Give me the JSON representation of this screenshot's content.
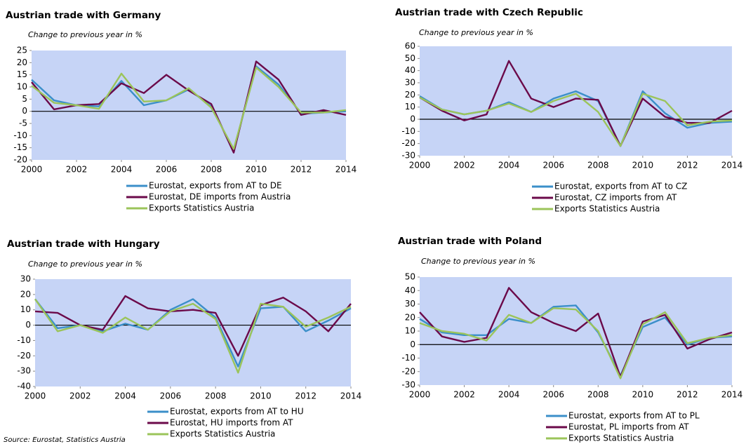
{
  "chart_data": [
    {
      "type": "line",
      "title": "Austrian trade with Germany",
      "subtitle": "Change to previous year in %",
      "x": [
        2000,
        2001,
        2002,
        2003,
        2004,
        2005,
        2006,
        2007,
        2008,
        2009,
        2010,
        2011,
        2012,
        2013,
        2014
      ],
      "xlim": [
        2000,
        2014
      ],
      "xticks": [
        2000,
        2002,
        2004,
        2006,
        2008,
        2010,
        2012,
        2014
      ],
      "ylim": [
        -20,
        25
      ],
      "yticks": [
        -20,
        -15,
        -10,
        -5,
        0,
        5,
        10,
        15,
        20,
        25
      ],
      "series": [
        {
          "name": "Eurostat, exports from AT to DE",
          "color": "#3b8fc9",
          "values": [
            13,
            4.5,
            2.5,
            2,
            12.5,
            2.5,
            4.5,
            9,
            2,
            -16,
            18.5,
            11,
            -1,
            -0.5,
            0
          ]
        },
        {
          "name": "Eurostat, DE imports from Austria",
          "color": "#6b0a4a",
          "values": [
            12,
            0.8,
            2.5,
            3,
            11.5,
            7.5,
            15,
            8.5,
            3,
            -17,
            20.5,
            13,
            -1.5,
            0.5,
            -1.5
          ]
        },
        {
          "name": "Exports Statistics Austria",
          "color": "#9bc45a",
          "values": [
            10.5,
            3.5,
            2.5,
            1,
            15.5,
            4,
            4.5,
            9.5,
            1.5,
            -15.5,
            18,
            10,
            -0.5,
            -0.5,
            0.5
          ]
        }
      ]
    },
    {
      "type": "line",
      "title": "Austrian trade with Czech Republic",
      "subtitle": "Change to previous year in %",
      "x": [
        2000,
        2001,
        2002,
        2003,
        2004,
        2005,
        2006,
        2007,
        2008,
        2009,
        2010,
        2011,
        2012,
        2013,
        2014
      ],
      "xlim": [
        2000,
        2014
      ],
      "xticks": [
        2000,
        2002,
        2004,
        2006,
        2008,
        2010,
        2012,
        2014
      ],
      "ylim": [
        -30,
        60
      ],
      "yticks": [
        -30,
        -20,
        -10,
        0,
        10,
        20,
        30,
        40,
        50,
        60
      ],
      "series": [
        {
          "name": "Eurostat, exports from AT to CZ",
          "color": "#3b8fc9",
          "values": [
            19,
            8,
            4,
            7,
            14,
            6,
            17,
            23,
            15,
            -22,
            23,
            5,
            -7,
            -3,
            -2
          ]
        },
        {
          "name": "Eurostat, CZ imports from AT",
          "color": "#6b0a4a",
          "values": [
            18,
            7,
            -1,
            4,
            48,
            17,
            10,
            17,
            16,
            -22,
            17,
            2,
            -3,
            -3,
            7
          ]
        },
        {
          "name": "Exports Statistics Austria",
          "color": "#9bc45a",
          "values": [
            18,
            8,
            4,
            7,
            13,
            6,
            15,
            21,
            6,
            -22,
            21,
            15,
            -5,
            -2,
            -1
          ]
        }
      ]
    },
    {
      "type": "line",
      "title": "Austrian trade with Hungary",
      "subtitle": "Change to previous year in %",
      "x": [
        2000,
        2001,
        2002,
        2003,
        2004,
        2005,
        2006,
        2007,
        2008,
        2009,
        2010,
        2011,
        2012,
        2013,
        2014
      ],
      "xlim": [
        2000,
        2014
      ],
      "xticks": [
        2000,
        2002,
        2004,
        2006,
        2008,
        2010,
        2012,
        2014
      ],
      "ylim": [
        -40,
        30
      ],
      "yticks": [
        -40,
        -30,
        -20,
        -10,
        0,
        10,
        20,
        30
      ],
      "series": [
        {
          "name": "Eurostat, exports from AT to HU",
          "color": "#3b8fc9",
          "values": [
            17,
            -2,
            0,
            -4,
            1,
            -3,
            10,
            17,
            5,
            -27,
            11,
            12,
            -4,
            3,
            11
          ]
        },
        {
          "name": "Eurostat, HU imports from AT",
          "color": "#6b0a4a",
          "values": [
            9,
            8,
            0,
            -3,
            19,
            11,
            9,
            10,
            8,
            -20,
            13,
            18,
            9,
            -4,
            14
          ]
        },
        {
          "name": "Exports Statistics Austria",
          "color": "#9bc45a",
          "values": [
            17,
            -4,
            0,
            -5,
            5,
            -3,
            9,
            14,
            4,
            -31,
            14,
            12,
            -1,
            5,
            12
          ]
        }
      ]
    },
    {
      "type": "line",
      "title": "Austrian trade with Poland",
      "subtitle": "Change to previous year in %",
      "x": [
        2000,
        2001,
        2002,
        2003,
        2004,
        2005,
        2006,
        2007,
        2008,
        2009,
        2010,
        2011,
        2012,
        2013,
        2014
      ],
      "xlim": [
        2000,
        2014
      ],
      "xticks": [
        2000,
        2002,
        2004,
        2006,
        2008,
        2010,
        2012,
        2014
      ],
      "ylim": [
        -30,
        50
      ],
      "yticks": [
        -30,
        -20,
        -10,
        0,
        10,
        20,
        30,
        40,
        50
      ],
      "series": [
        {
          "name": "Eurostat, exports from AT to PL",
          "color": "#3b8fc9",
          "values": [
            19,
            9,
            7,
            7,
            19,
            16,
            28,
            29,
            9,
            -23,
            13,
            20,
            0,
            5,
            6
          ]
        },
        {
          "name": "Eurostat, PL imports from AT",
          "color": "#6b0a4a",
          "values": [
            24,
            6,
            2,
            5,
            42,
            24,
            16,
            10,
            23,
            -24,
            17,
            22,
            -3,
            4,
            9
          ]
        },
        {
          "name": "Exports Statistics Austria",
          "color": "#9bc45a",
          "values": [
            16,
            10,
            8,
            3,
            22,
            16,
            27,
            26,
            10,
            -25,
            15,
            24,
            1,
            5,
            7
          ]
        }
      ]
    }
  ],
  "source": "Source: Eurostat, Statistics Austria"
}
